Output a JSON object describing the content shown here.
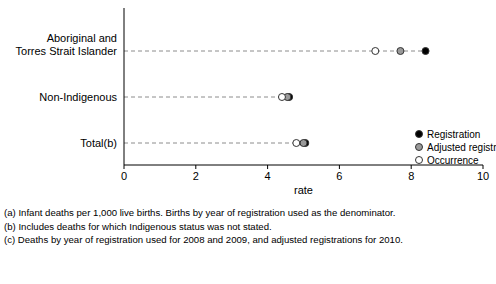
{
  "chart_data": {
    "type": "dot",
    "orientation": "horizontal",
    "categories": [
      "Aboriginal and\nTorres Strait Islander",
      "Non-Indigenous",
      "Total(b)"
    ],
    "series": [
      {
        "name": "Registration",
        "color": "#000000",
        "marker": "circle",
        "values": [
          8.4,
          4.6,
          5.05
        ]
      },
      {
        "name": "Adjusted registration(c)",
        "color": "#9a9a9a",
        "marker": "circle",
        "values": [
          7.7,
          4.55,
          5.0
        ]
      },
      {
        "name": "Occurrence",
        "color": "#ffffff",
        "marker": "circle",
        "values": [
          7.0,
          4.4,
          4.8
        ]
      }
    ],
    "x_label": "rate",
    "xlim": [
      0,
      10
    ],
    "xticks": [
      0,
      2,
      4,
      6,
      8,
      10
    ],
    "legend": "lower right",
    "grid": false,
    "notes": [
      "(a) Infant deaths per 1,000 live births. Births by year of registration used as the denominator.",
      "(b) Includes deaths for which Indigenous status was not stated.",
      "(c) Deaths by year of registration used for 2008 and 2009, and adjusted registrations for 2010."
    ]
  }
}
